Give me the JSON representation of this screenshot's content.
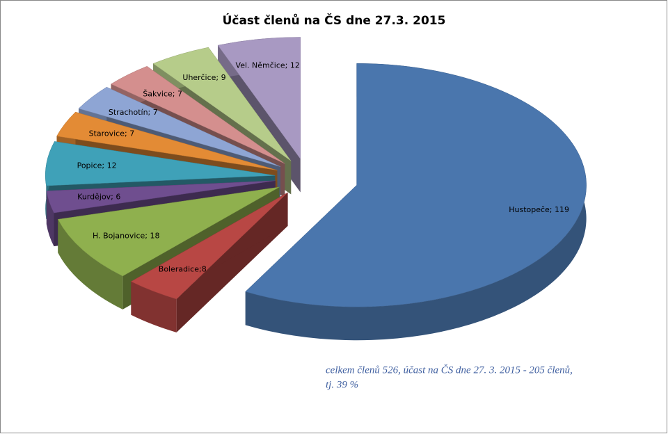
{
  "chart_data": {
    "type": "pie",
    "title": "Účast členů na ČS dne 27.3. 2015",
    "values": [
      119,
      8,
      18,
      6,
      12,
      7,
      7,
      7,
      9,
      12
    ],
    "value_labels": [
      "Hustopeče; 119",
      "Boleradice;8",
      "H. Bojanovice; 18",
      "Kurdějov; 6",
      "Popice; 12",
      "Starovice; 7",
      "Strachotín; 7",
      "Šakvice; 7",
      "Uherčice; 9",
      "Vel. Němčice; 12"
    ],
    "colors": [
      "#4a76ad",
      "#b84744",
      "#8fb04e",
      "#6f4e8f",
      "#3fa1b8",
      "#e38b35",
      "#8ea5d4",
      "#d48f8e",
      "#b6cc8a",
      "#a899c2"
    ],
    "annotation": [
      "celkem členů 526, účast na ČS dne 27. 3. 2015 - 205 členů,",
      "tj. 39 %"
    ]
  }
}
